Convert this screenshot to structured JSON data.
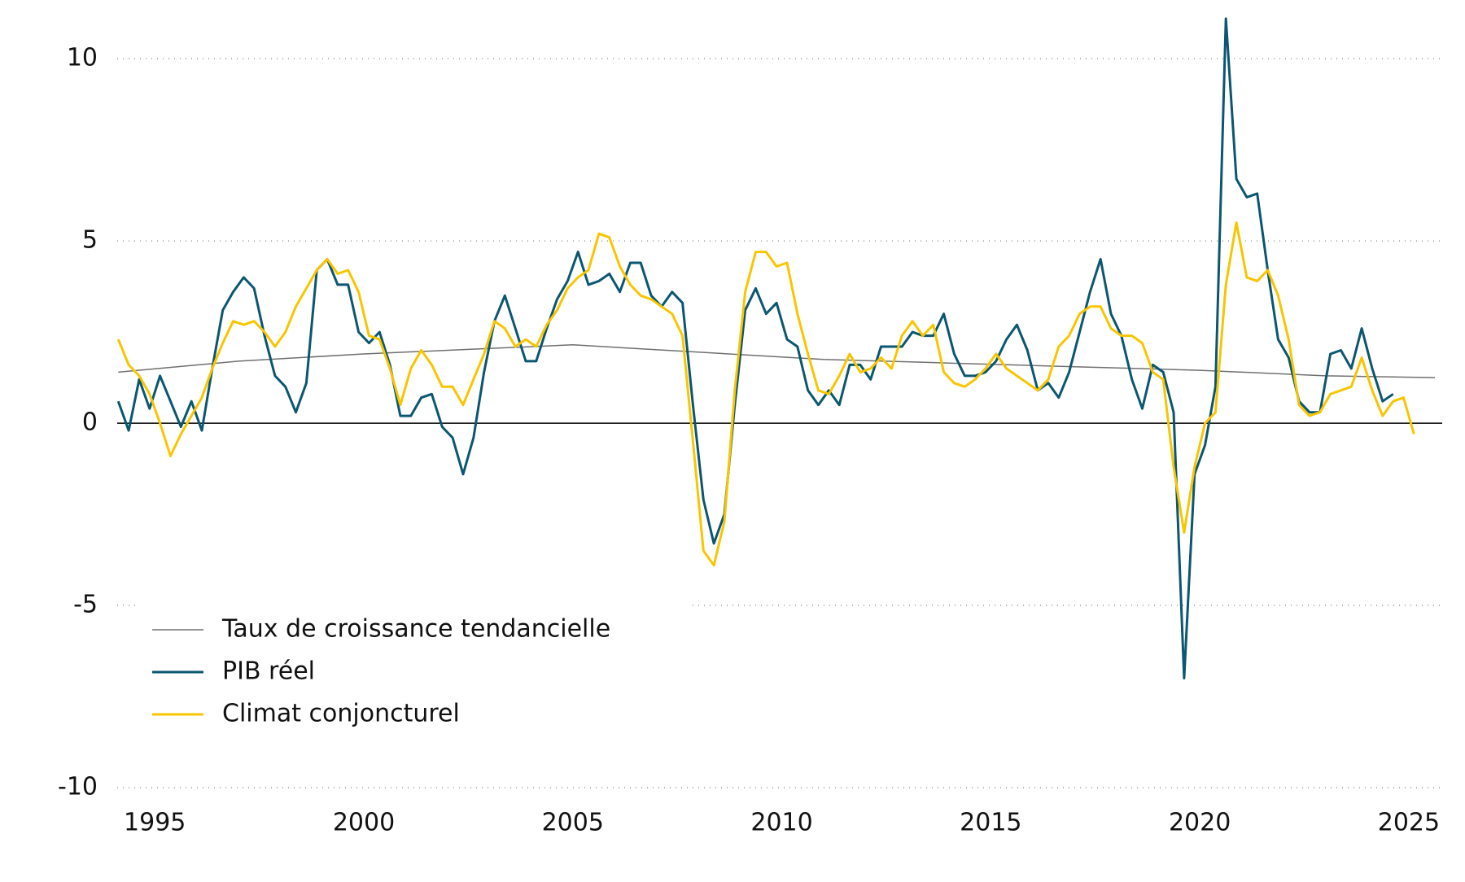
{
  "chart_data": {
    "type": "line",
    "x": [
      1994.125,
      1994.375,
      1994.625,
      1994.875,
      1995.125,
      1995.375,
      1995.625,
      1995.875,
      1996.125,
      1996.375,
      1996.625,
      1996.875,
      1997.125,
      1997.375,
      1997.625,
      1997.875,
      1998.125,
      1998.375,
      1998.625,
      1998.875,
      1999.125,
      1999.375,
      1999.625,
      1999.875,
      2000.125,
      2000.375,
      2000.625,
      2000.875,
      2001.125,
      2001.375,
      2001.625,
      2001.875,
      2002.125,
      2002.375,
      2002.625,
      2002.875,
      2003.125,
      2003.375,
      2003.625,
      2003.875,
      2004.125,
      2004.375,
      2004.625,
      2004.875,
      2005.125,
      2005.375,
      2005.625,
      2005.875,
      2006.125,
      2006.375,
      2006.625,
      2006.875,
      2007.125,
      2007.375,
      2007.625,
      2007.875,
      2008.125,
      2008.375,
      2008.625,
      2008.875,
      2009.125,
      2009.375,
      2009.625,
      2009.875,
      2010.125,
      2010.375,
      2010.625,
      2010.875,
      2011.125,
      2011.375,
      2011.625,
      2011.875,
      2012.125,
      2012.375,
      2012.625,
      2012.875,
      2013.125,
      2013.375,
      2013.625,
      2013.875,
      2014.125,
      2014.375,
      2014.625,
      2014.875,
      2015.125,
      2015.375,
      2015.625,
      2015.875,
      2016.125,
      2016.375,
      2016.625,
      2016.875,
      2017.125,
      2017.375,
      2017.625,
      2017.875,
      2018.125,
      2018.375,
      2018.625,
      2018.875,
      2019.125,
      2019.375,
      2019.625,
      2019.875,
      2020.125,
      2020.375,
      2020.625,
      2020.875,
      2021.125,
      2021.375,
      2021.625,
      2021.875,
      2022.125,
      2022.375,
      2022.625,
      2022.875,
      2023.125,
      2023.375,
      2023.625,
      2023.875,
      2024.125,
      2024.375,
      2024.625,
      2024.875,
      2025.125
    ],
    "series": [
      {
        "name": "Taux de croissance tendancielle",
        "color": "#707070",
        "width": 1.5,
        "x": [
          1994.125,
          1997,
          2000,
          2003,
          2005,
          2008,
          2011,
          2014,
          2017,
          2020,
          2023,
          2025.625
        ],
        "values": [
          1.4,
          1.7,
          1.9,
          2.05,
          2.15,
          1.95,
          1.75,
          1.65,
          1.55,
          1.45,
          1.3,
          1.25
        ]
      },
      {
        "name": "PIB réel",
        "color": "#0b5670",
        "width": 3,
        "values": [
          0.6,
          -0.2,
          1.2,
          0.4,
          1.3,
          0.6,
          -0.1,
          0.6,
          -0.2,
          1.5,
          3.1,
          3.6,
          4.0,
          3.7,
          2.4,
          1.3,
          1.0,
          0.3,
          1.1,
          4.2,
          4.5,
          3.8,
          3.8,
          2.5,
          2.2,
          2.5,
          1.6,
          0.2,
          0.2,
          0.7,
          0.8,
          -0.1,
          -0.4,
          -1.4,
          -0.4,
          1.4,
          2.8,
          3.5,
          2.6,
          1.7,
          1.7,
          2.6,
          3.4,
          3.9,
          4.7,
          3.8,
          3.9,
          4.1,
          3.6,
          4.4,
          4.4,
          3.5,
          3.2,
          3.6,
          3.3,
          0.5,
          -2.1,
          -3.3,
          -2.5,
          0.5,
          3.1,
          3.7,
          3.0,
          3.3,
          2.3,
          2.1,
          0.9,
          0.5,
          0.9,
          0.5,
          1.6,
          1.6,
          1.2,
          2.1,
          2.1,
          2.1,
          2.5,
          2.4,
          2.4,
          3.0,
          1.9,
          1.3,
          1.3,
          1.4,
          1.7,
          2.3,
          2.7,
          2.0,
          0.9,
          1.1,
          0.7,
          1.4,
          2.5,
          3.6,
          4.5,
          3.0,
          2.4,
          1.2,
          0.4,
          1.6,
          1.4,
          0.3,
          -7.0,
          -1.4,
          -0.6,
          1.0,
          11.1,
          6.7,
          6.2,
          6.3,
          4.2,
          2.3,
          1.8,
          0.6,
          0.3,
          0.3,
          1.9,
          2.0,
          1.5,
          2.6,
          1.5,
          0.6,
          0.8,
          null,
          null
        ]
      },
      {
        "name": "Climat conjoncturel",
        "color": "#f7c600",
        "width": 3,
        "values": [
          2.3,
          1.6,
          1.3,
          0.8,
          0.0,
          -0.9,
          -0.3,
          0.2,
          0.7,
          1.5,
          2.2,
          2.8,
          2.7,
          2.8,
          2.5,
          2.1,
          2.5,
          3.2,
          3.7,
          4.2,
          4.5,
          4.1,
          4.2,
          3.6,
          2.4,
          2.3,
          1.5,
          0.5,
          1.5,
          2.0,
          1.6,
          1.0,
          1.0,
          0.5,
          1.2,
          1.9,
          2.8,
          2.6,
          2.1,
          2.3,
          2.1,
          2.7,
          3.1,
          3.7,
          4.0,
          4.2,
          5.2,
          5.1,
          4.3,
          3.8,
          3.5,
          3.4,
          3.2,
          3.0,
          2.4,
          -0.5,
          -3.5,
          -3.9,
          -2.7,
          0.9,
          3.6,
          4.7,
          4.7,
          4.3,
          4.4,
          3.0,
          1.9,
          0.9,
          0.8,
          1.3,
          1.9,
          1.4,
          1.5,
          1.8,
          1.5,
          2.4,
          2.8,
          2.4,
          2.7,
          1.4,
          1.1,
          1.0,
          1.2,
          1.5,
          1.9,
          1.5,
          1.3,
          1.1,
          0.9,
          1.2,
          2.1,
          2.4,
          3.0,
          3.2,
          3.2,
          2.6,
          2.4,
          2.4,
          2.2,
          1.4,
          1.2,
          -1.2,
          -3.0,
          -1.2,
          0.0,
          0.3,
          3.8,
          5.5,
          4.0,
          3.9,
          4.2,
          3.5,
          2.3,
          0.5,
          0.2,
          0.3,
          0.8,
          0.9,
          1.0,
          1.8,
          0.9,
          0.2,
          0.6,
          0.7,
          -0.3
        ]
      }
    ],
    "xlim": [
      1994.1,
      2025.8
    ],
    "xticks": [
      1995,
      2000,
      2005,
      2010,
      2015,
      2020,
      2025
    ],
    "ylim": [
      -10,
      11.5
    ],
    "yticks": [
      -10,
      -5,
      0,
      5,
      10
    ],
    "grid": true,
    "legend": "lower-left"
  }
}
